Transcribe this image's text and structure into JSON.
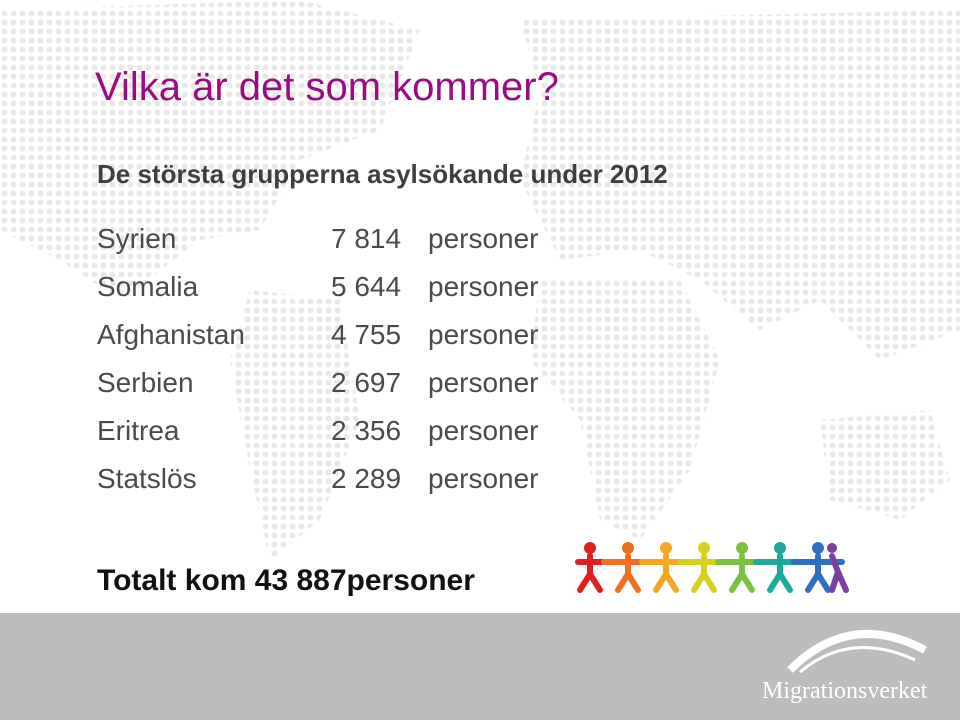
{
  "title": "Vilka är det som kommer?",
  "subtitle": "De största grupperna asylsökande under 2012",
  "rows": [
    {
      "name": "Syrien",
      "count": "7 814",
      "unit": "personer"
    },
    {
      "name": "Somalia",
      "count": "5 644",
      "unit": "personer"
    },
    {
      "name": "Afghanistan",
      "count": "4 755",
      "unit": "personer"
    },
    {
      "name": "Serbien",
      "count": "2 697",
      "unit": "personer"
    },
    {
      "name": "Eritrea",
      "count": "2 356",
      "unit": "personer"
    },
    {
      "name": "Statslös",
      "count": "2 289",
      "unit": "personer"
    }
  ],
  "total": "Totalt kom 43 887personer",
  "logo": "Migrationsverket"
}
